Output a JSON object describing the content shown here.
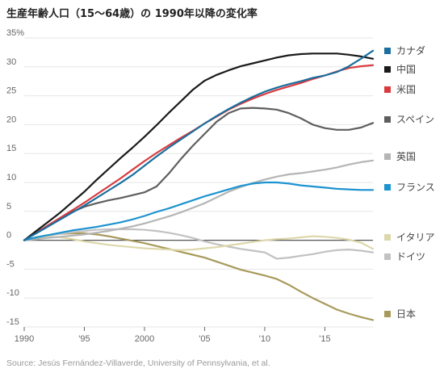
{
  "chart_data": {
    "type": "line",
    "title": "生産年齢人口（15〜64歳）の 1990年以降の変化率",
    "source": "Source: Jesús Fernández-Villaverde, University of Pennsylvania, et al.",
    "y_unit": "%",
    "ylim": [
      -15,
      35
    ],
    "xlim": [
      1990,
      2019
    ],
    "x_ticks": [
      {
        "value": 1990,
        "label": "1990"
      },
      {
        "value": 1995,
        "label": "'95"
      },
      {
        "value": 2000,
        "label": "2000"
      },
      {
        "value": 2005,
        "label": "'05"
      },
      {
        "value": 2010,
        "label": "'10"
      },
      {
        "value": 2015,
        "label": "'15"
      }
    ],
    "y_ticks": [
      {
        "value": 35,
        "label": "35"
      },
      {
        "value": 30,
        "label": "30"
      },
      {
        "value": 25,
        "label": "25"
      },
      {
        "value": 20,
        "label": "20"
      },
      {
        "value": 15,
        "label": "15"
      },
      {
        "value": 10,
        "label": "10"
      },
      {
        "value": 5,
        "label": "5"
      },
      {
        "value": 0,
        "label": "0"
      },
      {
        "value": -5,
        "label": "-5"
      },
      {
        "value": -10,
        "label": "-10"
      },
      {
        "value": -15,
        "label": "-15"
      }
    ],
    "grid": true,
    "legend_placement": "right",
    "x": [
      1990,
      1991,
      1992,
      1993,
      1994,
      1995,
      1996,
      1997,
      1998,
      1999,
      2000,
      2001,
      2002,
      2003,
      2004,
      2005,
      2006,
      2007,
      2008,
      2009,
      2010,
      2011,
      2012,
      2013,
      2014,
      2015,
      2016,
      2017,
      2018,
      2019
    ],
    "series": [
      {
        "name": "カナダ",
        "color": "#1a6f9e",
        "values": [
          0,
          1.2,
          2.4,
          3.6,
          4.8,
          6,
          7.3,
          8.6,
          9.9,
          11.3,
          12.9,
          14.5,
          16,
          17.4,
          18.8,
          20.2,
          21.5,
          22.7,
          23.8,
          24.8,
          25.7,
          26.4,
          27,
          27.5,
          28.1,
          28.5,
          29.1,
          30.1,
          31.4,
          32.8
        ]
      },
      {
        "name": "中国",
        "color": "#1a1a1a",
        "values": [
          0,
          1.6,
          3.2,
          4.8,
          6.6,
          8.4,
          10.4,
          12.3,
          14.2,
          16,
          17.9,
          19.9,
          22,
          24,
          26,
          27.6,
          28.6,
          29.4,
          30.1,
          30.6,
          31.1,
          31.6,
          32,
          32.2,
          32.3,
          32.3,
          32.3,
          32.1,
          31.8,
          31.4
        ]
      },
      {
        "name": "米国",
        "color": "#d93a3f",
        "values": [
          0,
          1.3,
          2.6,
          3.9,
          5.2,
          6.5,
          7.9,
          9.3,
          10.7,
          12.2,
          13.7,
          15.1,
          16.4,
          17.7,
          18.9,
          20.2,
          21.4,
          22.6,
          23.6,
          24.5,
          25.3,
          26,
          26.6,
          27.2,
          27.9,
          28.5,
          29.2,
          29.8,
          30.1,
          30.3
        ]
      },
      {
        "name": "スペイン",
        "color": "#5e5e5e",
        "values": [
          0,
          1.3,
          2.6,
          3.8,
          4.9,
          5.8,
          6.4,
          6.9,
          7.3,
          7.8,
          8.3,
          9.3,
          11.5,
          14,
          16.3,
          18.4,
          20.5,
          22,
          22.8,
          22.9,
          22.8,
          22.6,
          22,
          21.1,
          20,
          19.4,
          19.1,
          19.1,
          19.5,
          20.3
        ]
      },
      {
        "name": "英国",
        "color": "#b5b5b5",
        "values": [
          0,
          0.2,
          0.4,
          0.6,
          0.8,
          1,
          1.3,
          1.6,
          2,
          2.4,
          2.9,
          3.5,
          4.1,
          4.8,
          5.6,
          6.4,
          7.4,
          8.4,
          9.2,
          9.9,
          10.5,
          11,
          11.4,
          11.6,
          11.9,
          12.2,
          12.6,
          13.1,
          13.5,
          13.8
        ]
      },
      {
        "name": "フランス",
        "color": "#1d93cf",
        "values": [
          0,
          0.5,
          0.9,
          1.3,
          1.7,
          2,
          2.3,
          2.7,
          3.1,
          3.6,
          4.2,
          4.9,
          5.5,
          6.2,
          6.9,
          7.6,
          8.2,
          8.8,
          9.4,
          9.8,
          10,
          10,
          9.8,
          9.5,
          9.3,
          9.1,
          8.9,
          8.8,
          8.7,
          8.7
        ]
      },
      {
        "name": "イタリア",
        "color": "#ddd8ab",
        "values": [
          0,
          0.4,
          0.6,
          0.5,
          0.2,
          -0.2,
          -0.5,
          -0.8,
          -1,
          -1.2,
          -1.4,
          -1.5,
          -1.6,
          -1.7,
          -1.6,
          -1.4,
          -1.2,
          -0.9,
          -0.6,
          -0.3,
          0,
          0.2,
          0.3,
          0.5,
          0.7,
          0.6,
          0.4,
          0.1,
          -0.4,
          -1.5
        ]
      },
      {
        "name": "ドイツ",
        "color": "#c2c2c2",
        "values": [
          0,
          0.4,
          0.8,
          1.1,
          1.4,
          1.6,
          1.8,
          1.9,
          1.9,
          1.9,
          1.8,
          1.6,
          1.3,
          0.9,
          0.4,
          -0.2,
          -0.7,
          -1.1,
          -1.5,
          -1.8,
          -2.1,
          -3.2,
          -3,
          -2.7,
          -2.4,
          -2,
          -1.7,
          -1.6,
          -1.8,
          -2.1
        ]
      },
      {
        "name": "日本",
        "color": "#a89a5c",
        "values": [
          0,
          0.5,
          0.9,
          1.1,
          1.2,
          1.2,
          1,
          0.7,
          0.3,
          -0.1,
          -0.5,
          -1,
          -1.5,
          -2,
          -2.5,
          -3,
          -3.7,
          -4.4,
          -5.1,
          -5.6,
          -6.1,
          -6.7,
          -7.7,
          -8.9,
          -10,
          -11,
          -12,
          -12.7,
          -13.3,
          -13.8
        ]
      }
    ]
  }
}
